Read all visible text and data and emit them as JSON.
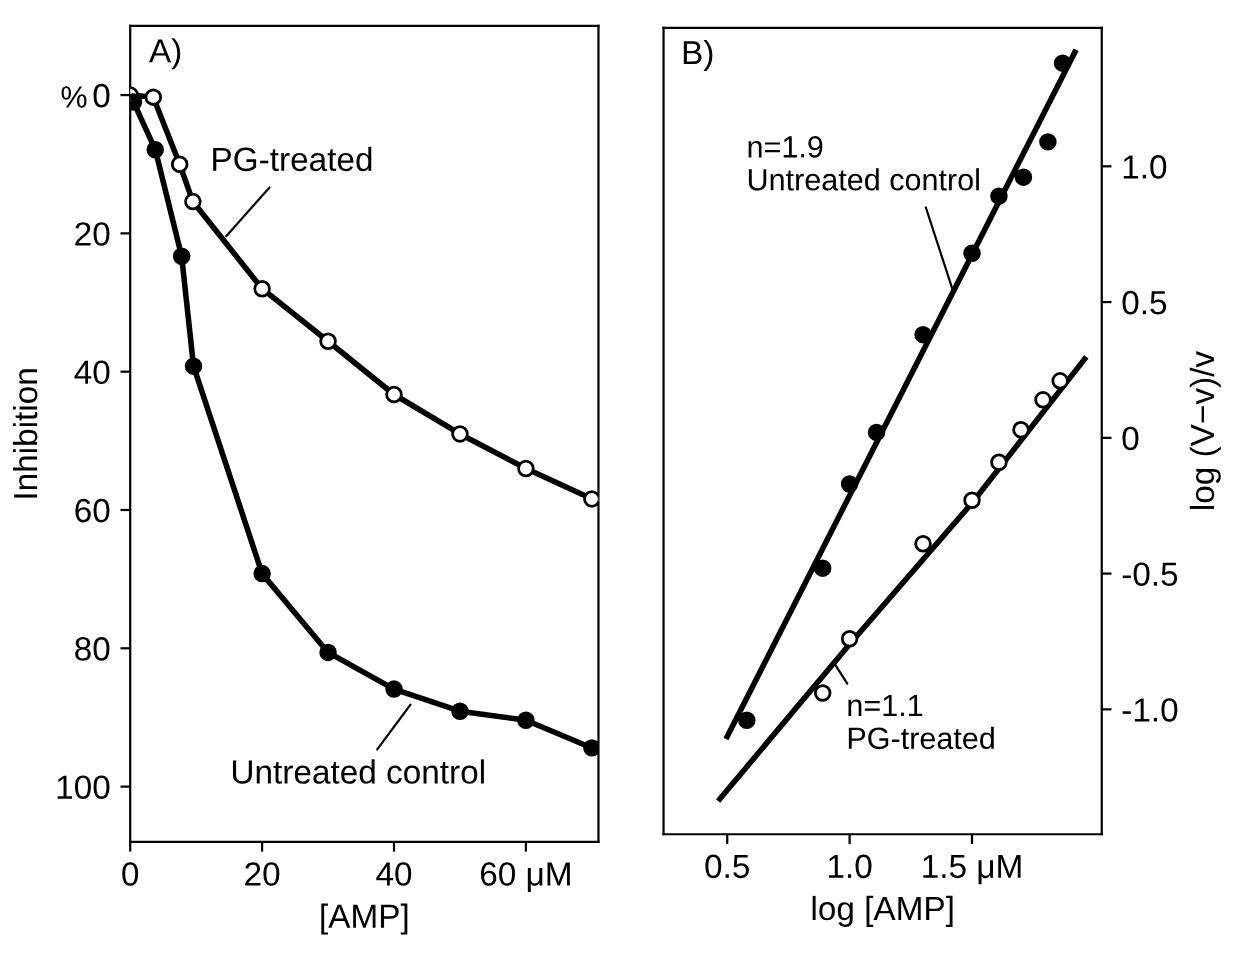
{
  "chart_data": [
    {
      "type": "line",
      "title": "A)",
      "xlabel": "[AMP]",
      "ylabel": "Inhibition",
      "xlim": [
        0,
        71
      ],
      "ylim": [
        108,
        -10
      ],
      "xticks": [
        0,
        20,
        40,
        {
          "value": 60,
          "label": "60 μM"
        }
      ],
      "yticks": [
        0,
        20,
        40,
        60,
        80,
        100
      ],
      "grid": false,
      "legend": false,
      "series": [
        {
          "color": "#000000",
          "marker": "none",
          "x": [
            0,
            3.5,
            7.5,
            9.5,
            20,
            30,
            40,
            50,
            60,
            70
          ],
          "values": [
            0,
            0.3,
            10,
            15.4,
            28,
            35.6,
            43.3,
            49,
            54,
            58.4
          ]
        },
        {
          "type": "scatter",
          "color": "#ffffff",
          "marker": "circle",
          "x": [
            0,
            3.5,
            7.5,
            9.5,
            20,
            30,
            40,
            50,
            60,
            70
          ],
          "values": [
            0,
            0.3,
            10,
            15.4,
            28,
            35.6,
            43.3,
            49,
            54,
            58.4
          ]
        },
        {
          "color": "#000000",
          "marker": "none",
          "x": [
            0.5,
            3.8,
            7.8,
            9.6,
            20,
            30,
            40,
            50,
            60,
            70
          ],
          "values": [
            1,
            7.9,
            23.3,
            39.2,
            69.2,
            80.6,
            85.9,
            89.1,
            90.4,
            94.4
          ]
        },
        {
          "type": "scatter",
          "color": "#000000",
          "marker": "circle",
          "x": [
            0.5,
            3.8,
            7.8,
            9.6,
            20,
            30,
            40,
            50,
            60,
            70
          ],
          "values": [
            1,
            7.9,
            23.3,
            39.2,
            69.2,
            80.6,
            85.9,
            89.1,
            90.4,
            94.4
          ]
        }
      ],
      "annotations": [
        "%",
        {
          "text": "PG-treated",
          "x": 14,
          "y": 21
        },
        {
          "text": "Untreated control",
          "x": 43,
          "y": 87.5
        }
      ]
    },
    {
      "type": "line",
      "title": "B)",
      "xlabel": "log [AMP]",
      "ylabel": "log (V−v)/v",
      "xlim": [
        0.24,
        2.03
      ],
      "ylim": [
        -1.46,
        1.51
      ],
      "xticks": [
        0.5,
        {
          "value": 1.0,
          "label": "1.0"
        },
        {
          "value": 1.5,
          "label": "1.5 μM"
        }
      ],
      "yticks": [
        {
          "value": 1.0,
          "label": "1.0"
        },
        0.5,
        0,
        {
          "value": -0.5,
          "label": "-0.5"
        },
        {
          "value": -1.0,
          "label": "-1.0"
        }
      ],
      "grid": false,
      "legend": false,
      "series": [
        {
          "type": "scatter",
          "color": "#000000",
          "marker": "circle",
          "x": [
            0.58,
            0.89,
            1.0,
            1.11,
            1.3,
            1.5,
            1.61,
            1.71,
            1.81,
            1.87
          ],
          "values": [
            -1.04,
            -0.48,
            -0.17,
            0.02,
            0.38,
            0.68,
            0.89,
            0.96,
            1.09,
            1.38
          ]
        },
        {
          "color": "#000000",
          "marker": "none",
          "x": [
            0.5,
            1.92
          ],
          "values": [
            -1.1,
            1.42
          ]
        },
        {
          "type": "scatter",
          "color": "#ffffff",
          "marker": "circle",
          "x": [
            0.89,
            1.0,
            1.3,
            1.5,
            1.61,
            1.7,
            1.79,
            1.86
          ],
          "values": [
            -0.94,
            -0.74,
            -0.39,
            -0.23,
            -0.09,
            0.03,
            0.14,
            0.21
          ]
        },
        {
          "color": "#000000",
          "marker": "none",
          "x": [
            0.47,
            1.0,
            1.5,
            1.96
          ],
          "values": [
            -1.33,
            -0.76,
            -0.24,
            0.29
          ]
        }
      ],
      "annotations": [
        {
          "text": "n=1.9\nUntreated control",
          "x": 1.43,
          "y": 0.52
        },
        {
          "text": "n=1.1\nPG-treated",
          "x": 0.93,
          "y": -0.82
        }
      ]
    }
  ]
}
